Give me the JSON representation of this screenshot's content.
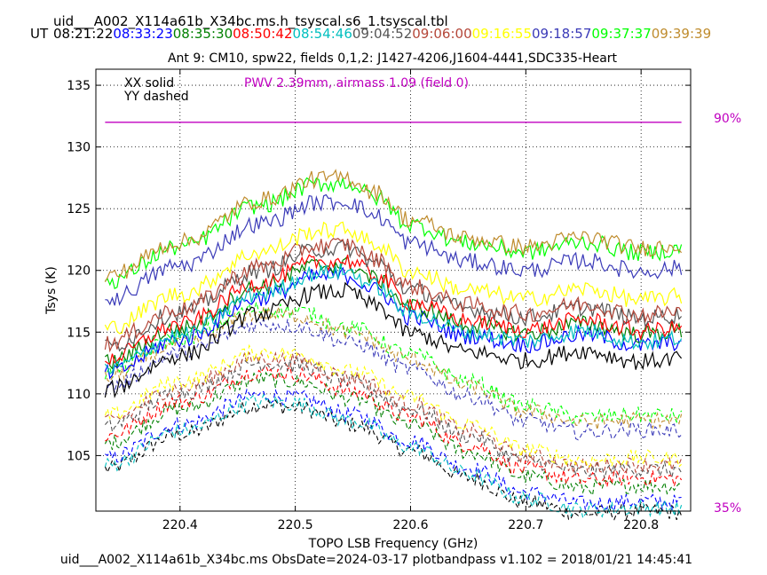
{
  "chart_data": {
    "type": "line",
    "filename": "uid___A002_X114a61b_X34bc.ms.h_tsyscal.s6_1.tsyscal.tbl",
    "ut_label": "UT",
    "times": [
      {
        "t": "08:21:22",
        "color": "#000000"
      },
      {
        "t": "08:33:23",
        "color": "#0000ff"
      },
      {
        "t": "08:35:30",
        "color": "#008000"
      },
      {
        "t": "08:50:42",
        "color": "#ff0000"
      },
      {
        "t": "08:54:46",
        "color": "#00bfbf"
      },
      {
        "t": "09:04:52",
        "color": "#555555"
      },
      {
        "t": "09:06:00",
        "color": "#b5483a"
      },
      {
        "t": "09:16:55",
        "color": "#ffff00"
      },
      {
        "t": "09:18:57",
        "color": "#3a3ab8"
      },
      {
        "t": "09:37:37",
        "color": "#00ff00"
      },
      {
        "t": "09:39:39",
        "color": "#bf8c2e"
      }
    ],
    "title": "Ant 9: CM10,  spw22,  fields 0,1,2: J1427-4206,J1604-4441,SDC335-Heart",
    "legend": [
      "XX solid",
      "YY dashed"
    ],
    "pwv_label": "PWV 2.39mm, airmass 1.09 (field 0)",
    "pwv_value": 132,
    "pct_top": "90%",
    "pct_bottom": "35%",
    "xlabel": "TOPO LSB Frequency (GHz)",
    "ylabel": "Tsys (K)",
    "xlim": [
      220.327,
      220.843
    ],
    "ylim": [
      100.5,
      136.3
    ],
    "xticks": [
      220.4,
      220.5,
      220.6,
      220.7,
      220.8
    ],
    "yticks": [
      105,
      110,
      115,
      120,
      125,
      130,
      135
    ],
    "grid": true,
    "freq_range": [
      220.335,
      220.835
    ],
    "xx_shape": {
      "knots_x": [
        220.335,
        220.4,
        220.47,
        220.52,
        220.545,
        220.57,
        220.6,
        220.65,
        220.7,
        220.75,
        220.8,
        220.835
      ],
      "knots_y": [
        0,
        2.8,
        6.2,
        7.9,
        8.0,
        6.8,
        4.6,
        3.1,
        2.4,
        3.2,
        2.3,
        2.6
      ]
    },
    "yy_shape": {
      "knots_x": [
        220.335,
        220.4,
        220.47,
        220.5,
        220.55,
        220.6,
        220.65,
        220.7,
        220.75,
        220.8,
        220.835
      ],
      "knots_y": [
        0,
        2.8,
        5.2,
        5.0,
        3.6,
        1.5,
        -0.7,
        -2.7,
        -3.6,
        -3.4,
        -3.5
      ]
    },
    "series": [
      {
        "color": "#000000",
        "xx_base": 110.3,
        "yy_base": 103.9
      },
      {
        "color": "#0000ff",
        "xx_base": 111.6,
        "yy_base": 104.7
      },
      {
        "color": "#008000",
        "xx_base": 112.5,
        "yy_base": 106.0
      },
      {
        "color": "#ff0000",
        "xx_base": 112.8,
        "yy_base": 106.6
      },
      {
        "color": "#00bfbf",
        "xx_base": 111.9,
        "yy_base": 104.2
      },
      {
        "color": "#555555",
        "xx_base": 113.8,
        "yy_base": 107.3
      },
      {
        "color": "#b5483a",
        "xx_base": 114.1,
        "yy_base": 107.7
      },
      {
        "color": "#ffff00",
        "xx_base": 115.3,
        "yy_base": 108.2
      },
      {
        "color": "#3a3ab8",
        "xx_base": 117.6,
        "yy_base": 110.5
      },
      {
        "color": "#00ff00",
        "xx_base": 119.1,
        "yy_base": 111.7
      },
      {
        "color": "#bf8c2e",
        "xx_base": 119.5,
        "yy_base": 111.3
      }
    ],
    "footer": "uid___A002_X114a61b_X34bc.ms  ObsDate=2024-03-17   plotbandpass v1.102 = 2018/01/21 14:45:41"
  }
}
